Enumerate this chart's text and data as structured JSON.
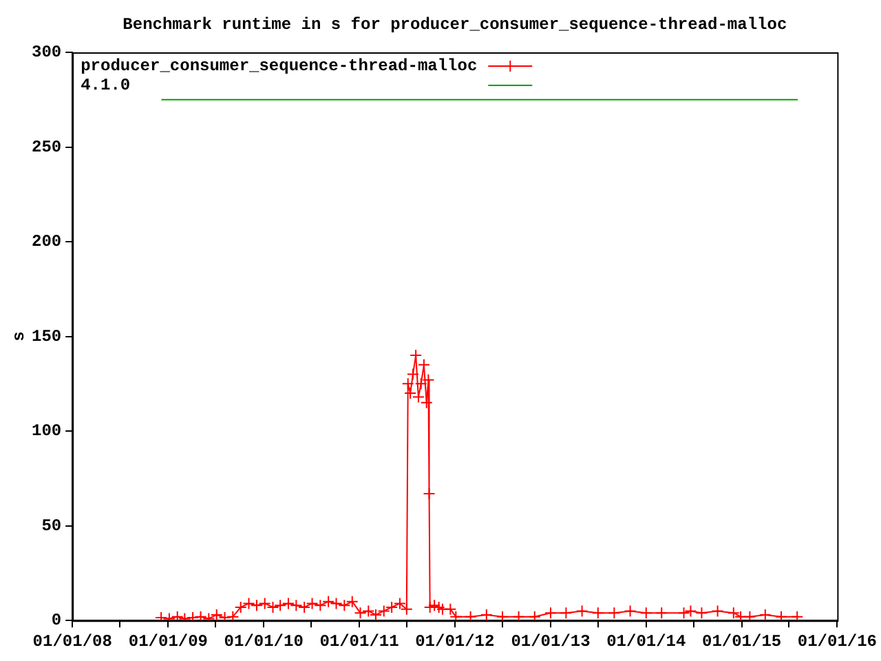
{
  "chart_data": {
    "type": "line",
    "title": "Benchmark runtime in s for producer_consumer_sequence-thread-malloc",
    "ylabel": "s",
    "xlim": [
      "2008-01-01",
      "2016-01-01"
    ],
    "xticks": [
      {
        "value": "2008-01-01",
        "label": "01/01/08"
      },
      {
        "value": "2008-07-01",
        "label": null
      },
      {
        "value": "2009-01-01",
        "label": "01/01/09"
      },
      {
        "value": "2009-07-01",
        "label": null
      },
      {
        "value": "2010-01-01",
        "label": "01/01/10"
      },
      {
        "value": "2010-07-01",
        "label": null
      },
      {
        "value": "2011-01-01",
        "label": "01/01/11"
      },
      {
        "value": "2011-07-01",
        "label": null
      },
      {
        "value": "2012-01-01",
        "label": "01/01/12"
      },
      {
        "value": "2012-07-01",
        "label": null
      },
      {
        "value": "2013-01-01",
        "label": "01/01/13"
      },
      {
        "value": "2013-07-01",
        "label": null
      },
      {
        "value": "2014-01-01",
        "label": "01/01/14"
      },
      {
        "value": "2014-07-01",
        "label": null
      },
      {
        "value": "2015-01-01",
        "label": "01/01/15"
      },
      {
        "value": "2015-07-01",
        "label": null
      },
      {
        "value": "2016-01-01",
        "label": "01/01/16"
      }
    ],
    "ylim": [
      0,
      300
    ],
    "yticks": [
      0,
      50,
      100,
      150,
      200,
      250,
      300
    ],
    "grid": false,
    "legend": "top left",
    "marker": "cross",
    "line_style": "solid",
    "series": [
      {
        "name": "producer_consumer_sequence-thread-malloc",
        "color": "#ff0000",
        "x": [
          "2008-12-05",
          "2009-01-05",
          "2009-02-05",
          "2009-03-05",
          "2009-04-05",
          "2009-05-05",
          "2009-06-05",
          "2009-07-05",
          "2009-08-05",
          "2009-09-05",
          "2009-10-05",
          "2009-11-05",
          "2009-12-05",
          "2010-01-05",
          "2010-02-05",
          "2010-03-05",
          "2010-04-05",
          "2010-05-05",
          "2010-06-05",
          "2010-07-05",
          "2010-08-05",
          "2010-09-05",
          "2010-10-05",
          "2010-11-05",
          "2010-12-05",
          "2011-01-05",
          "2011-02-05",
          "2011-03-05",
          "2011-04-05",
          "2011-05-05",
          "2011-06-05",
          "2011-07-01",
          "2011-07-06",
          "2011-07-15",
          "2011-07-25",
          "2011-08-05",
          "2011-08-15",
          "2011-08-25",
          "2011-09-05",
          "2011-09-15",
          "2011-09-22",
          "2011-09-25",
          "2011-09-28",
          "2011-10-15",
          "2011-11-01",
          "2011-11-15",
          "2011-12-15",
          "2012-01-05",
          "2012-03-01",
          "2012-05-01",
          "2012-07-01",
          "2012-09-01",
          "2012-11-01",
          "2013-01-01",
          "2013-03-01",
          "2013-05-01",
          "2013-07-01",
          "2013-09-01",
          "2013-11-01",
          "2014-01-01",
          "2014-03-01",
          "2014-05-25",
          "2014-06-20",
          "2014-08-01",
          "2014-10-01",
          "2014-12-01",
          "2014-12-28",
          "2015-02-01",
          "2015-04-01",
          "2015-06-01",
          "2015-08-01"
        ],
        "values": [
          1.5,
          1,
          2,
          1,
          1.5,
          2,
          1,
          3,
          1.5,
          2,
          7,
          9,
          8,
          9,
          7,
          8,
          9,
          8,
          7,
          9,
          8,
          10,
          9,
          8,
          10,
          4,
          5,
          3,
          5,
          7,
          9,
          6,
          125,
          120,
          130,
          140,
          118,
          125,
          135,
          115,
          127,
          67,
          7,
          8,
          7,
          6,
          6,
          2,
          2,
          3,
          2,
          2,
          2,
          4,
          4,
          5,
          4,
          4,
          5,
          4,
          4,
          4,
          5,
          4,
          5,
          4,
          2,
          2,
          3,
          2,
          2
        ]
      },
      {
        "name": "4.1.0",
        "color": "#00a000",
        "marker": "none",
        "x": [
          "2008-12-06",
          "2015-08-03"
        ],
        "values": [
          275,
          275
        ]
      }
    ]
  }
}
